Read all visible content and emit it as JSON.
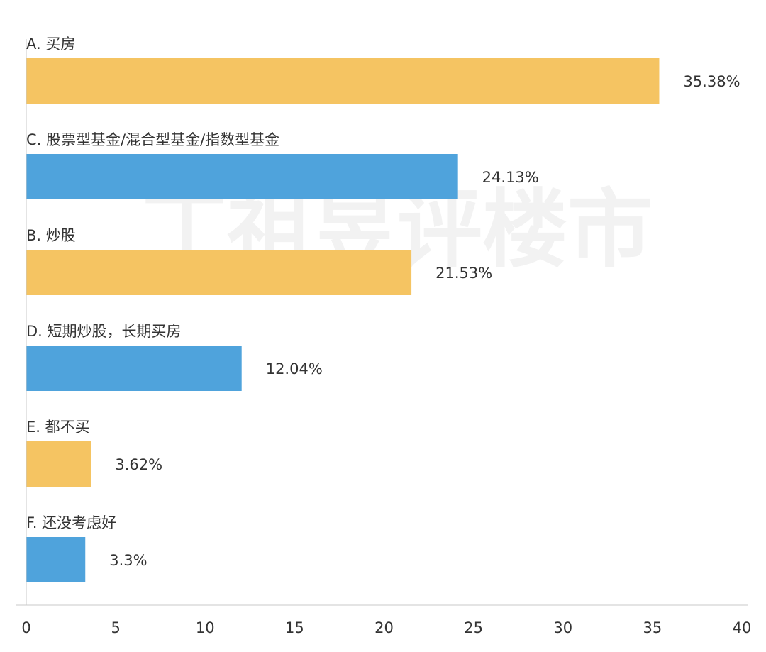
{
  "watermark": "丁祖昱评楼市",
  "chart_data": {
    "type": "bar",
    "orientation": "horizontal",
    "title": "",
    "xlabel": "",
    "ylabel": "",
    "xlim": [
      0,
      40
    ],
    "x_ticks": [
      0,
      5,
      10,
      15,
      20,
      25,
      30,
      35,
      40
    ],
    "grid": false,
    "legend": "none",
    "colors": {
      "yellow": "#F5C462",
      "blue": "#4FA3DC",
      "axis": "#C8C8C8",
      "text": "#333333"
    },
    "categories": [
      "A. 买房",
      "C. 股票型基金/混合型基金/指数型基金",
      "B. 炒股",
      "D. 短期炒股，长期买房",
      "E. 都不买",
      "F. 还没考虑好"
    ],
    "values": [
      35.38,
      24.13,
      21.53,
      12.04,
      3.62,
      3.3
    ],
    "value_labels": [
      "35.38%",
      "24.13%",
      "21.53%",
      "12.04%",
      "3.62%",
      "3.3%"
    ],
    "bar_colors": [
      "#F5C462",
      "#4FA3DC",
      "#F5C462",
      "#4FA3DC",
      "#F5C462",
      "#4FA3DC"
    ]
  }
}
